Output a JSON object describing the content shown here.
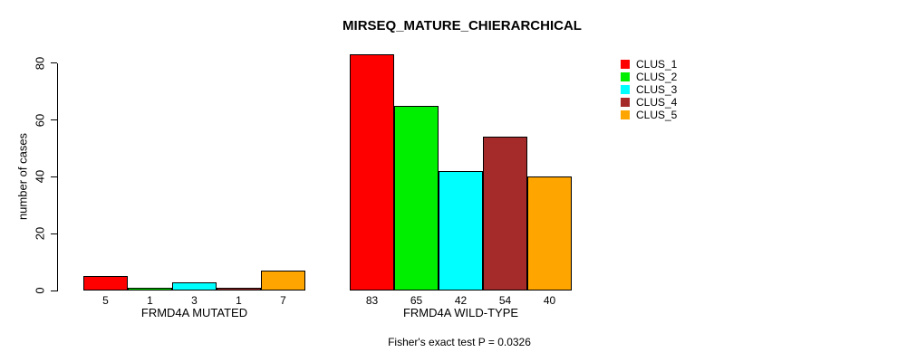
{
  "chart_data": {
    "type": "bar",
    "title": "MIRSEQ_MATURE_CHIERARCHICAL",
    "ylabel": "number of cases",
    "xlabel": "",
    "ylim": [
      0,
      80
    ],
    "yticks": [
      0,
      20,
      40,
      60,
      80
    ],
    "grid": false,
    "legend_position": "top-right",
    "categories": [
      "FRMD4A MUTATED",
      "FRMD4A WILD-TYPE"
    ],
    "groups": [
      {
        "label": "FRMD4A MUTATED",
        "values": [
          5,
          1,
          3,
          1,
          7
        ]
      },
      {
        "label": "FRMD4A WILD-TYPE",
        "values": [
          83,
          65,
          42,
          54,
          40
        ]
      }
    ],
    "series": [
      {
        "name": "CLUS_1",
        "color": "#FF0000",
        "values": [
          5,
          83
        ]
      },
      {
        "name": "CLUS_2",
        "color": "#00EE00",
        "values": [
          1,
          65
        ]
      },
      {
        "name": "CLUS_3",
        "color": "#00FFFF",
        "values": [
          3,
          42
        ]
      },
      {
        "name": "CLUS_4",
        "color": "#A52A2A",
        "values": [
          1,
          54
        ]
      },
      {
        "name": "CLUS_5",
        "color": "#FFA500",
        "values": [
          7,
          40
        ]
      }
    ],
    "annotation": "Fisher's exact test P = 0.0326"
  }
}
